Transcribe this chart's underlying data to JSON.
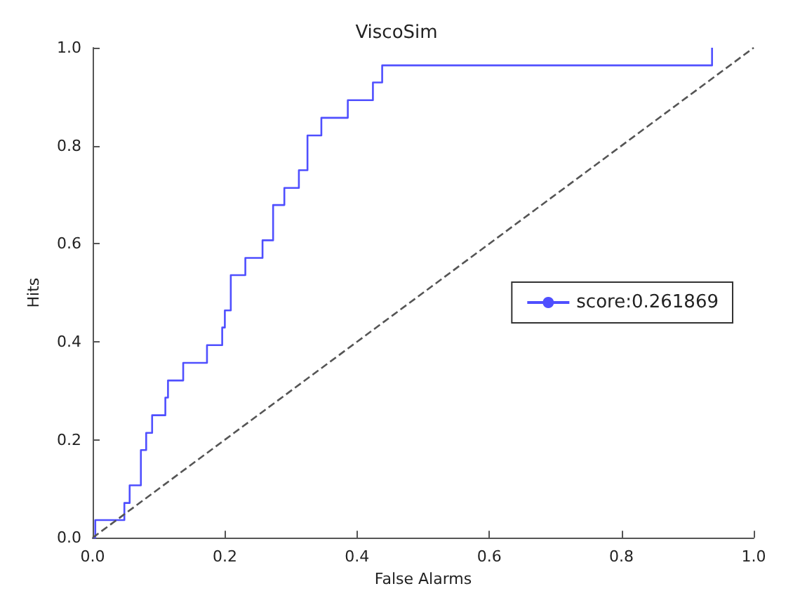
{
  "chart_data": {
    "type": "step",
    "title": "ViscoSim",
    "xlabel": "False Alarms",
    "ylabel": "Hits",
    "xlim": [
      0,
      1
    ],
    "ylim": [
      0,
      1
    ],
    "xticks": [
      {
        "value": 0,
        "label": "0.0"
      },
      {
        "value": 0.2,
        "label": "0.2"
      },
      {
        "value": 0.4,
        "label": "0.4"
      },
      {
        "value": 0.6,
        "label": "0.6"
      },
      {
        "value": 0.8,
        "label": "0.8"
      },
      {
        "value": 1,
        "label": "1.0"
      }
    ],
    "yticks": [
      {
        "value": 0,
        "label": "0.0"
      },
      {
        "value": 0.2,
        "label": "0.2"
      },
      {
        "value": 0.4,
        "label": "0.4"
      },
      {
        "value": 0.6,
        "label": "0.6"
      },
      {
        "value": 0.8,
        "label": "0.8"
      },
      {
        "value": 1,
        "label": "1.0"
      }
    ],
    "grid": false,
    "legend": "right",
    "marker": "none",
    "series": [
      {
        "name": "score:0.261869",
        "color": "#4f4fff",
        "x": [
          0,
          0.004,
          0.048,
          0.056,
          0.073,
          0.081,
          0.09,
          0.11,
          0.114,
          0.137,
          0.173,
          0.196,
          0.2,
          0.209,
          0.231,
          0.257,
          0.273,
          0.29,
          0.312,
          0.325,
          0.346,
          0.386,
          0.424,
          0.438,
          0.937
        ],
        "values": [
          0,
          0.036,
          0.071,
          0.107,
          0.179,
          0.214,
          0.25,
          0.286,
          0.321,
          0.357,
          0.393,
          0.429,
          0.464,
          0.536,
          0.571,
          0.607,
          0.679,
          0.714,
          0.75,
          0.821,
          0.857,
          0.893,
          0.929,
          0.964,
          1.0
        ]
      },
      {
        "type": "line",
        "color": "#555555",
        "line_style": "dashed",
        "x": [
          0,
          1
        ],
        "values": [
          0,
          1
        ]
      }
    ]
  }
}
